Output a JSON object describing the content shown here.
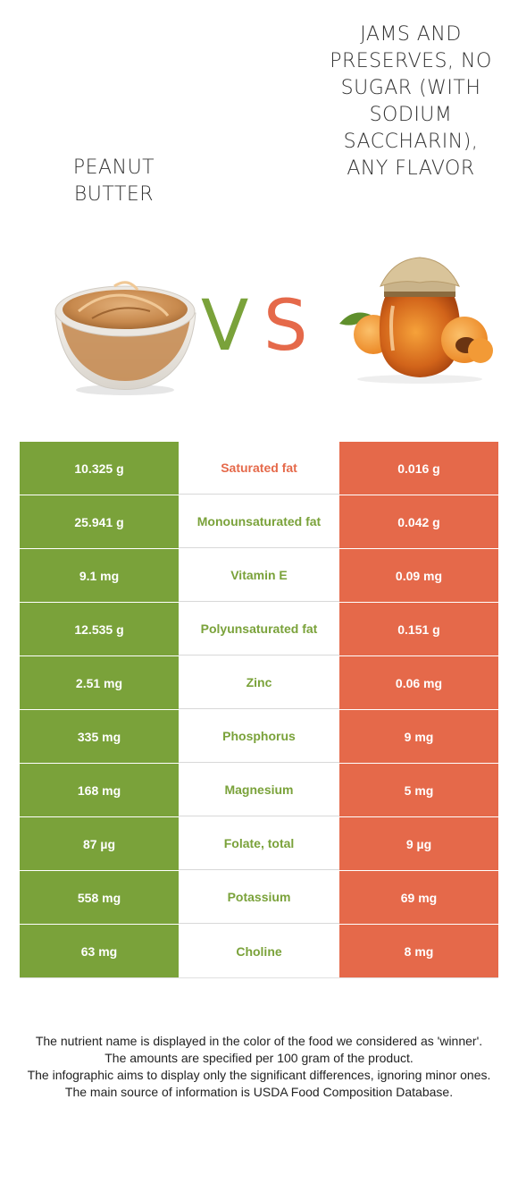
{
  "foods": {
    "left": {
      "name": "PEANUT BUTTER",
      "color": "#7aa23a",
      "image": "peanut-butter-bowl"
    },
    "right": {
      "name": "JAMS AND PRESERVES, NO SUGAR (WITH SODIUM SACCHARIN), ANY FLAVOR",
      "color": "#e5694a",
      "image": "apricot-jam-jar"
    }
  },
  "vs": {
    "v": "V",
    "s": "S"
  },
  "rows": [
    {
      "nutrient": "Saturated fat",
      "left": "10.325 g",
      "right": "0.016 g",
      "winner": "right"
    },
    {
      "nutrient": "Monounsaturated fat",
      "left": "25.941 g",
      "right": "0.042 g",
      "winner": "left"
    },
    {
      "nutrient": "Vitamin E",
      "left": "9.1 mg",
      "right": "0.09 mg",
      "winner": "left"
    },
    {
      "nutrient": "Polyunsaturated fat",
      "left": "12.535 g",
      "right": "0.151 g",
      "winner": "left"
    },
    {
      "nutrient": "Zinc",
      "left": "2.51 mg",
      "right": "0.06 mg",
      "winner": "left"
    },
    {
      "nutrient": "Phosphorus",
      "left": "335 mg",
      "right": "9 mg",
      "winner": "left"
    },
    {
      "nutrient": "Magnesium",
      "left": "168 mg",
      "right": "5 mg",
      "winner": "left"
    },
    {
      "nutrient": "Folate, total",
      "left": "87 µg",
      "right": "9 µg",
      "winner": "left"
    },
    {
      "nutrient": "Potassium",
      "left": "558 mg",
      "right": "69 mg",
      "winner": "left"
    },
    {
      "nutrient": "Choline",
      "left": "63 mg",
      "right": "8 mg",
      "winner": "left"
    }
  ],
  "notes": [
    "The nutrient name is displayed in the color of the food we considered as 'winner'.",
    "The amounts are specified per 100 gram of the product.",
    "The infographic aims to display only the significant differences, ignoring minor ones.",
    "The main source of information is USDA Food Composition Database."
  ]
}
